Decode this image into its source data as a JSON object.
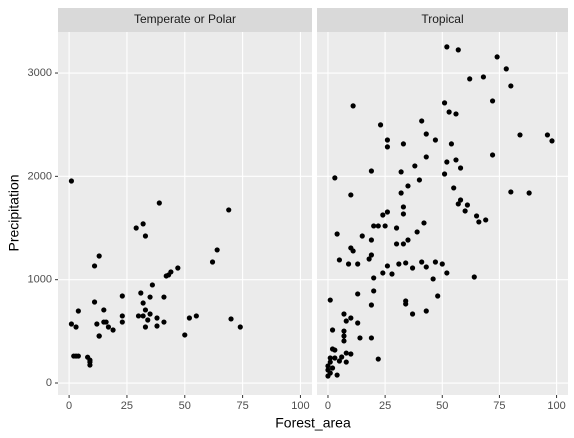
{
  "chart_data": {
    "type": "scatter",
    "xlabel": "Forest_area",
    "ylabel": "Precipitation",
    "xlim": [
      -4.8,
      105
    ],
    "ylim": [
      -116,
      3397
    ],
    "xticks": [
      0,
      25,
      50,
      75,
      100
    ],
    "yticks": [
      0,
      1000,
      2000,
      3000
    ],
    "grid": true,
    "color": "#000000",
    "facets": [
      {
        "title": "Temperate or Polar",
        "x": [
          1,
          1,
          2,
          3,
          4,
          3,
          4,
          8,
          9,
          9,
          9,
          11,
          11,
          13,
          12,
          13,
          13,
          15,
          16,
          17,
          15,
          19,
          23,
          23,
          23,
          29,
          32,
          33,
          30,
          32,
          31,
          32,
          33,
          34,
          33,
          35,
          36,
          35,
          38,
          38,
          39,
          41,
          41,
          42,
          43,
          44,
          47,
          50,
          52,
          55,
          62,
          64,
          69,
          70,
          74
        ],
        "y": [
          1955,
          571,
          261,
          261,
          261,
          542,
          697,
          250,
          222,
          174,
          203,
          784,
          1133,
          1229,
          571,
          455,
          455,
          707,
          590,
          542,
          590,
          513,
          842,
          649,
          590,
          1500,
          1540,
          1423,
          649,
          649,
          871,
          774,
          707,
          610,
          542,
          668,
          949,
          832,
          629,
          552,
          1742,
          832,
          590,
          1036,
          1046,
          1075,
          1113,
          465,
          629,
          649,
          1171,
          1288,
          1675,
          620,
          542
        ]
      },
      {
        "title": "Tropical",
        "x": [
          52,
          57,
          74,
          78,
          62,
          68,
          72,
          80,
          11,
          23,
          26,
          26,
          33,
          41,
          43,
          51,
          53,
          56,
          47,
          54,
          72,
          96,
          98,
          84,
          56,
          58,
          52,
          43,
          38,
          32,
          19,
          10,
          3,
          51,
          55,
          40,
          32,
          80,
          88,
          58,
          57,
          60,
          61,
          35,
          26,
          33,
          33,
          24,
          20,
          22,
          25,
          15,
          30,
          4,
          19,
          5,
          10,
          11,
          9,
          13,
          19,
          18,
          30,
          33,
          35,
          39,
          42,
          31,
          34,
          26,
          24,
          28,
          37,
          41,
          43,
          47,
          50,
          52,
          46,
          48,
          65,
          66,
          69,
          64,
          20,
          20,
          13,
          19,
          34,
          34,
          37,
          43,
          1,
          7,
          8,
          10,
          13,
          7,
          7,
          2,
          14,
          7,
          10,
          8,
          2,
          3,
          3,
          5,
          6,
          1,
          1,
          0,
          0,
          0,
          1,
          2,
          4,
          8,
          22,
          19
        ],
        "y": [
          3253,
          3224,
          3156,
          3040,
          2943,
          2962,
          2730,
          2875,
          2682,
          2498,
          2352,
          2285,
          2314,
          2536,
          2410,
          2711,
          2623,
          2604,
          2352,
          2314,
          2207,
          2401,
          2343,
          2401,
          2159,
          2081,
          2139,
          2188,
          2101,
          2043,
          2052,
          1820,
          1985,
          2023,
          1888,
          1965,
          1839,
          1849,
          1839,
          1771,
          1733,
          1665,
          1723,
          1907,
          1655,
          1704,
          1636,
          1626,
          1520,
          1520,
          1520,
          1423,
          1500,
          1442,
          1384,
          1191,
          1307,
          1278,
          1152,
          1152,
          1239,
          1200,
          1346,
          1346,
          1384,
          1462,
          1549,
          1152,
          1162,
          1133,
          1065,
          1055,
          1113,
          1171,
          1123,
          1171,
          1152,
          1065,
          1007,
          842,
          1617,
          1559,
          1578,
          1026,
          1017,
          891,
          862,
          755,
          794,
          765,
          668,
          697,
          803,
          668,
          600,
          629,
          581,
          503,
          455,
          513,
          436,
          407,
          281,
          290,
          329,
          319,
          242,
          213,
          252,
          242,
          203,
          165,
          126,
          68,
          97,
          145,
          77,
          203,
          232,
          436
        ]
      }
    ]
  }
}
